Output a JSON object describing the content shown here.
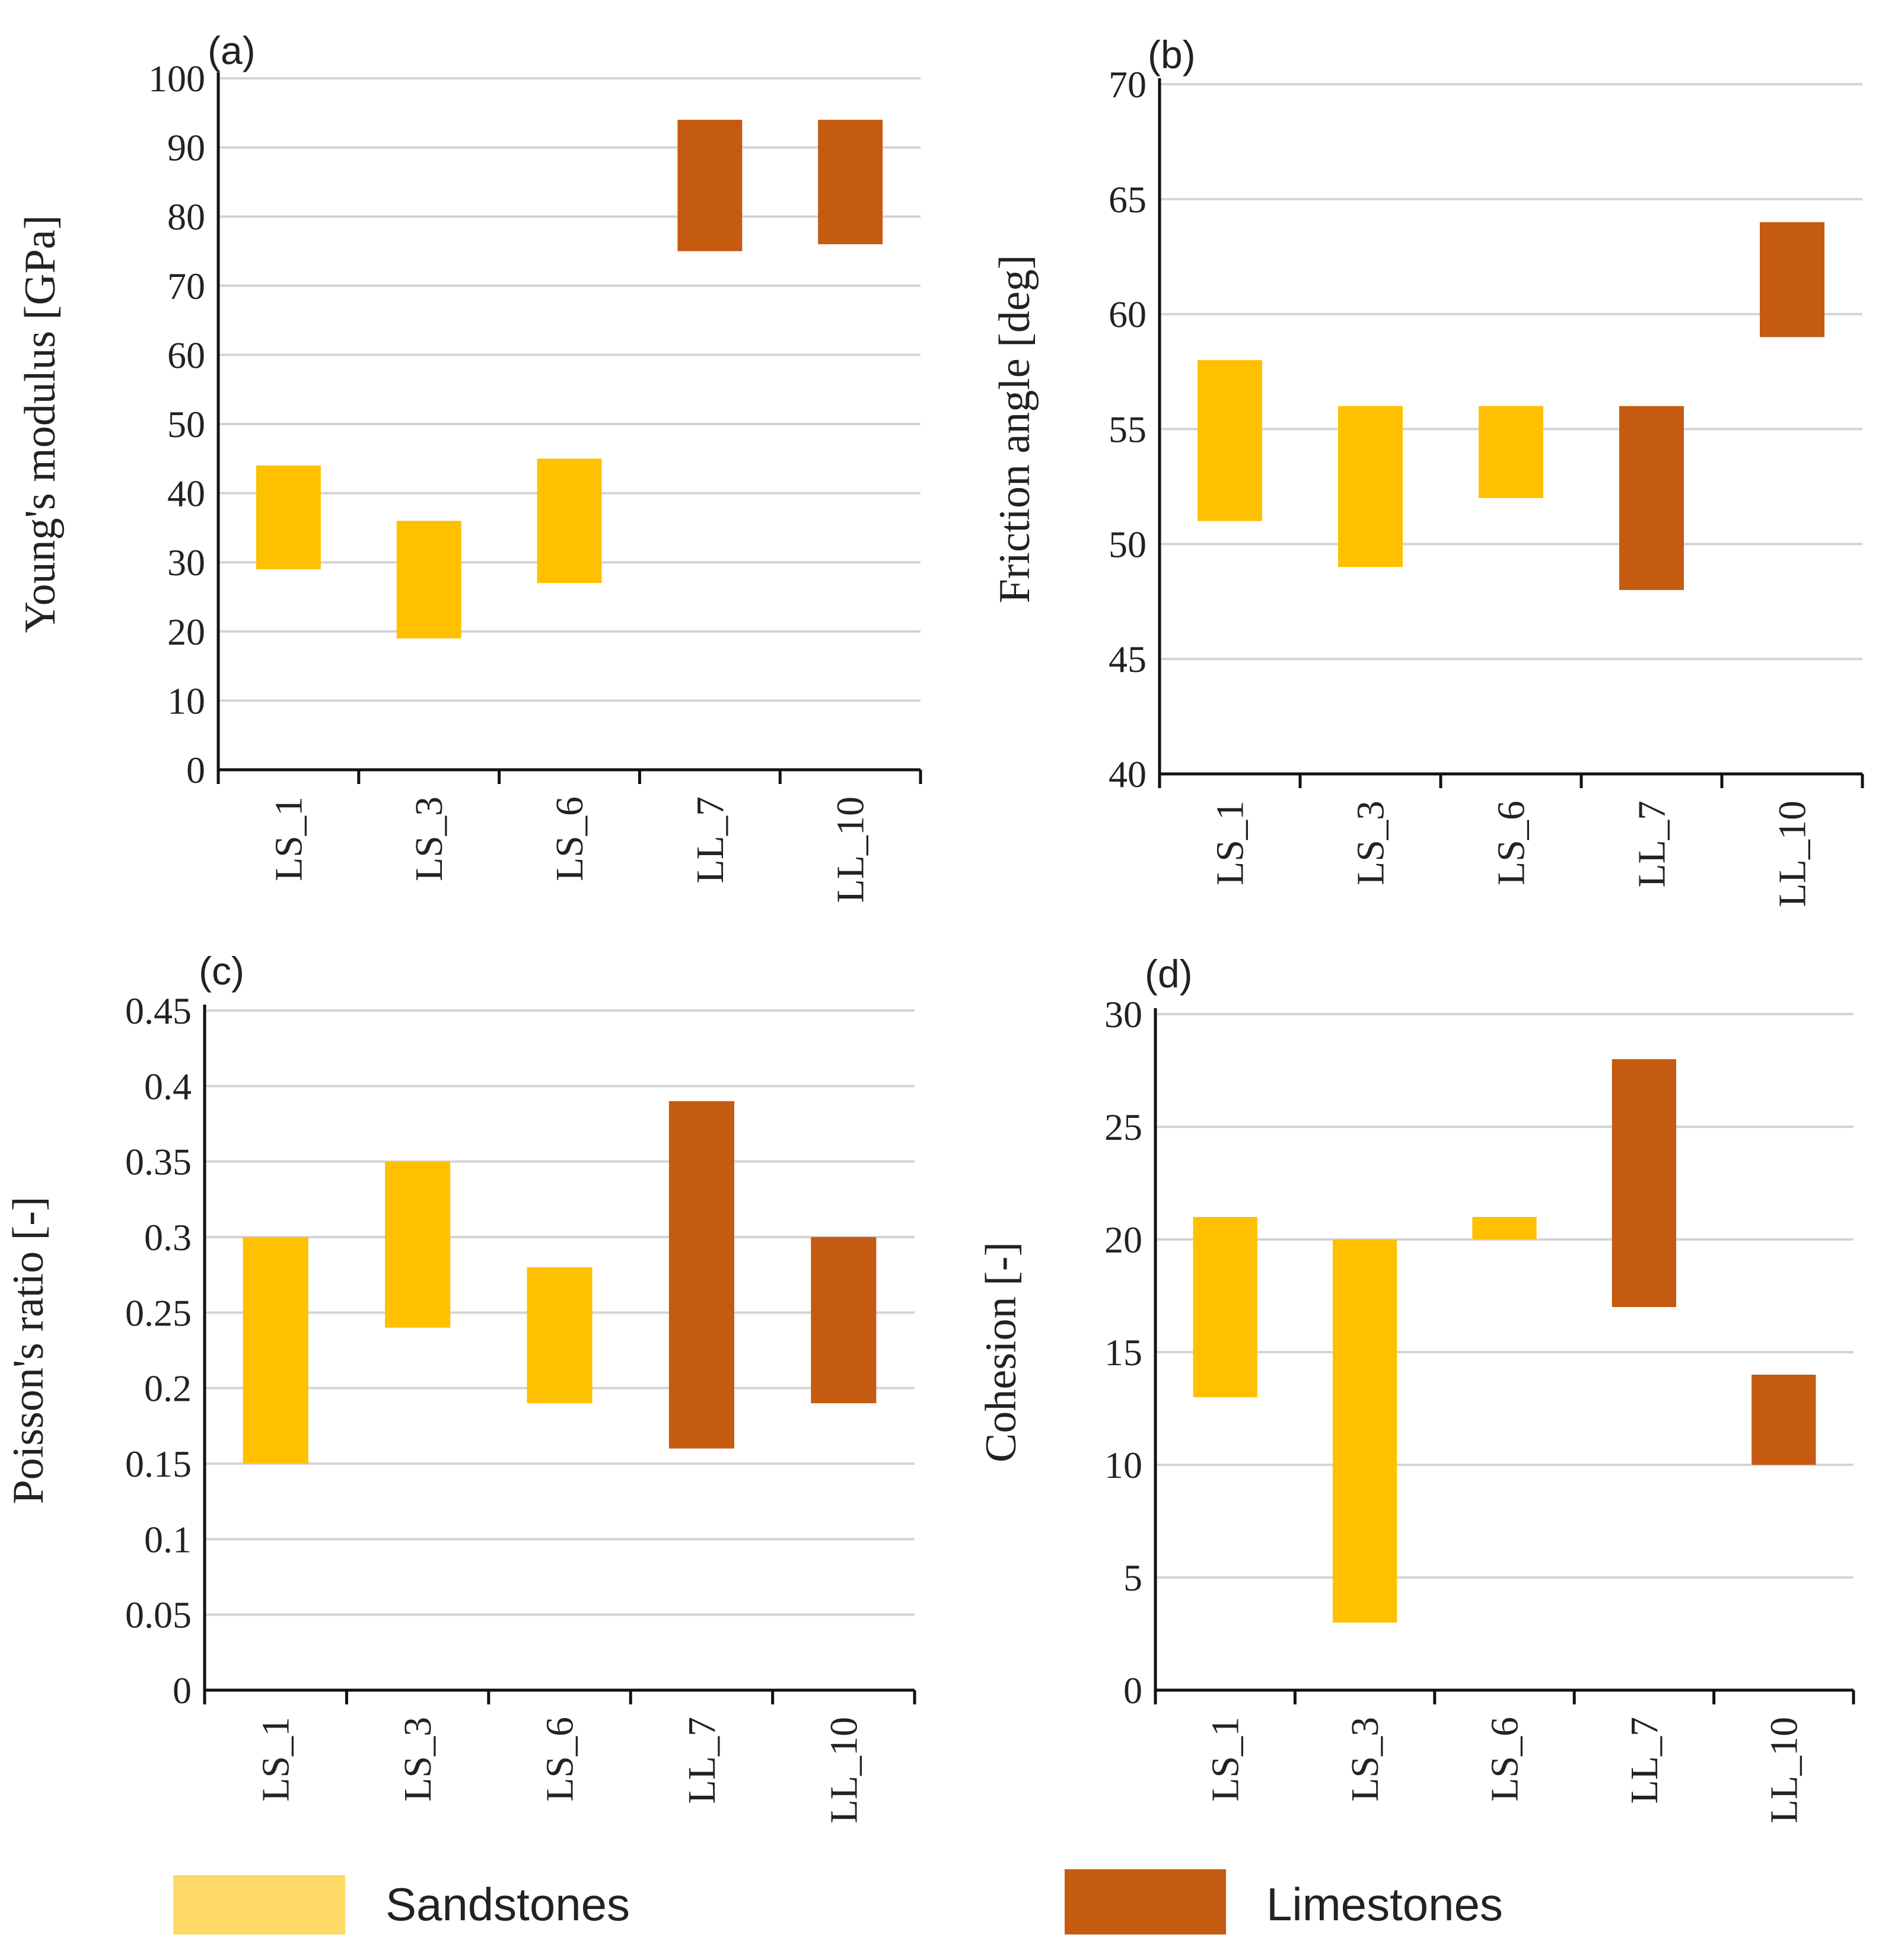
{
  "colors": {
    "sandstone": "#FFC000",
    "limestone": "#C55A11",
    "legend_sandstone": "#FFD966"
  },
  "legend": {
    "sandstones": "Sandstones",
    "limestones": "Limestones"
  },
  "chart_data": [
    {
      "type": "bar",
      "subtype": "floating-range",
      "panel_label": "(a)",
      "ylabel": "Young's modulus [GPa]",
      "ylim": [
        0,
        100
      ],
      "yticks": [
        "0",
        "10",
        "20",
        "30",
        "40",
        "50",
        "60",
        "70",
        "80",
        "90",
        "100"
      ],
      "categories": [
        "LS_1",
        "LS_3",
        "LS_6",
        "LL_7",
        "LL_10"
      ],
      "groups": [
        "sandstone",
        "sandstone",
        "sandstone",
        "limestone",
        "limestone"
      ],
      "low": [
        29,
        19,
        27,
        75,
        76
      ],
      "high": [
        44,
        36,
        45,
        94,
        94
      ],
      "grid": true
    },
    {
      "type": "bar",
      "subtype": "floating-range",
      "panel_label": "(b)",
      "ylabel": "Friction angle [deg]",
      "ylim": [
        40,
        70
      ],
      "yticks": [
        "40",
        "45",
        "50",
        "55",
        "60",
        "65",
        "70"
      ],
      "categories": [
        "LS_1",
        "LS_3",
        "LS_6",
        "LL_7",
        "LL_10"
      ],
      "groups": [
        "sandstone",
        "sandstone",
        "sandstone",
        "limestone",
        "limestone"
      ],
      "low": [
        51,
        49,
        52,
        48,
        59
      ],
      "high": [
        58,
        56,
        56,
        56,
        64
      ],
      "grid": true
    },
    {
      "type": "bar",
      "subtype": "floating-range",
      "panel_label": "(c)",
      "ylabel": "Poisson's ratio [-]",
      "ylim": [
        0,
        0.45
      ],
      "yticks": [
        "0",
        "0.05",
        "0.1",
        "0.15",
        "0.2",
        "0.25",
        "0.3",
        "0.35",
        "0.4",
        "0.45"
      ],
      "categories": [
        "LS_1",
        "LS_3",
        "LS_6",
        "LL_7",
        "LL_10"
      ],
      "groups": [
        "sandstone",
        "sandstone",
        "sandstone",
        "limestone",
        "limestone"
      ],
      "low": [
        0.15,
        0.24,
        0.19,
        0.16,
        0.19
      ],
      "high": [
        0.3,
        0.35,
        0.28,
        0.39,
        0.3
      ],
      "grid": true
    },
    {
      "type": "bar",
      "subtype": "floating-range",
      "panel_label": "(d)",
      "ylabel": "Cohesion [-]",
      "ylim": [
        0,
        30
      ],
      "yticks": [
        "0",
        "5",
        "10",
        "15",
        "20",
        "25",
        "30"
      ],
      "categories": [
        "LS_1",
        "LS_3",
        "LS_6",
        "LL_7",
        "LL_10"
      ],
      "groups": [
        "sandstone",
        "sandstone",
        "sandstone",
        "limestone",
        "limestone"
      ],
      "low": [
        13,
        3,
        20,
        17,
        10
      ],
      "high": [
        21,
        20,
        21,
        28,
        14
      ],
      "grid": true
    }
  ]
}
